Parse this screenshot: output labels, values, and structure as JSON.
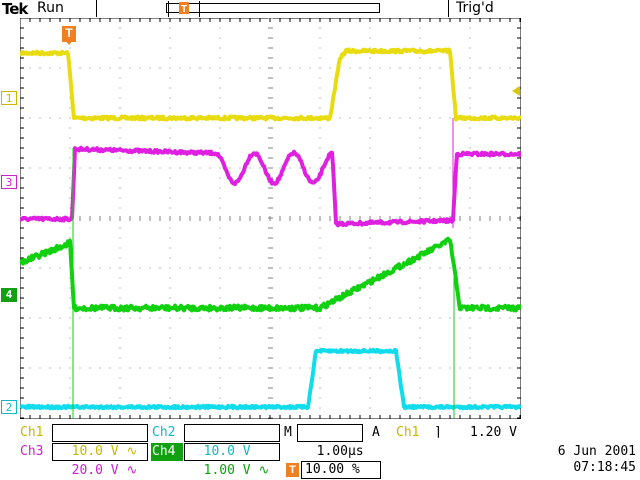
{
  "header": {
    "brand": "Tek",
    "status": "Run",
    "trigger_status": "Trig'd",
    "trigger_position_icon": "T"
  },
  "channel_markers": {
    "ch1": "1",
    "ch2": "2",
    "ch3": "3",
    "ch4": "4"
  },
  "colors": {
    "ch1": "#e8dc10",
    "ch2": "#10dcec",
    "ch3": "#e020e0",
    "ch4": "#10d010",
    "trigger": "#f08020",
    "graticule": "#808080"
  },
  "readouts": {
    "ch1_label": "Ch1",
    "ch1_scale": "10.0 V",
    "ch2_label": "Ch2",
    "ch2_scale": "10.0 V",
    "ch3_label": "Ch3",
    "ch3_scale": "20.0 V",
    "ch4_label": "Ch4",
    "ch4_scale": "1.00 V",
    "timebase_prefix": "M",
    "timebase": "1.00µs",
    "trigger_mode": "A",
    "trigger_source": "Ch1",
    "trigger_level": "1.20 V",
    "trigger_position": "10.00 %",
    "date": "6 Jun  2001",
    "time": "07:18:45"
  },
  "icons": {
    "coupling": "ac-coupling-icon",
    "trigger_slope": "falling-edge-icon",
    "trigger_position": "trigger-t-icon",
    "trigger_level": "trigger-level-arrow-icon"
  }
}
